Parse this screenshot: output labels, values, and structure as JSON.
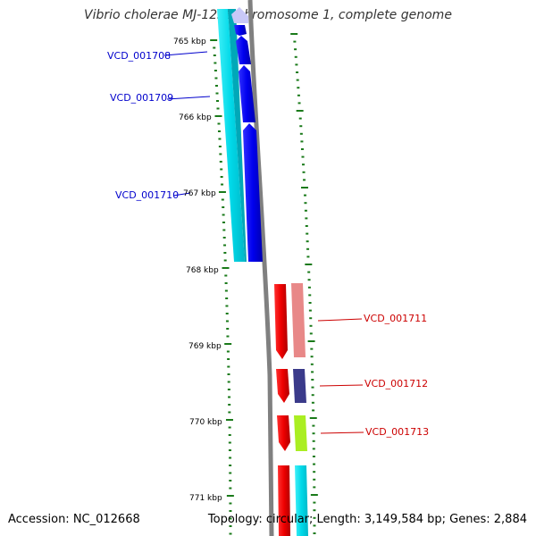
{
  "header": {
    "title": "Vibrio cholerae MJ-1236 chromosome 1, complete genome"
  },
  "footer": {
    "accession": "Accession: NC_012668",
    "info": "Topology: circular; Length: 3,149,584 bp; Genes: 2,884"
  },
  "scale": {
    "ticks": [
      "765 kbp",
      "766 kbp",
      "767 kbp",
      "768 kbp",
      "769 kbp",
      "770 kbp",
      "771 kbp"
    ],
    "tick_color": "#1a7a1a"
  },
  "genes": [
    {
      "label": "VCD_001708",
      "color": "#0000cc"
    },
    {
      "label": "VCD_001709",
      "color": "#0000cc"
    },
    {
      "label": "VCD_001710",
      "color": "#0000cc"
    },
    {
      "label": "VCD_001711",
      "color": "#cc0000"
    },
    {
      "label": "VCD_001712",
      "color": "#cc0000"
    },
    {
      "label": "VCD_001713",
      "color": "#cc0000"
    }
  ],
  "colors": {
    "backbone": "#808080",
    "forward_cds": "#0000ee",
    "reverse_cds": "#ee0000",
    "cyan_track": "#00e5ee",
    "salmon_track": "#e88080",
    "navy_track": "#3a3a8a",
    "lime_track": "#aaee22"
  }
}
